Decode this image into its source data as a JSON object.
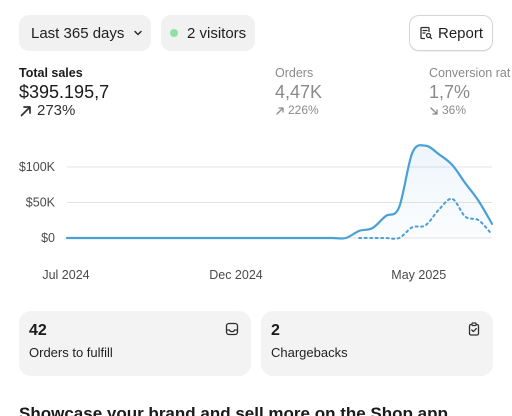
{
  "filters": {
    "date_range": "Last 365 days",
    "visitors": "2 visitors",
    "visitors_dot_color": "#8fdfa9"
  },
  "report_button": {
    "label": "Report",
    "icon": "report-icon"
  },
  "metrics": [
    {
      "label": "Total sales",
      "value": "$395.195,7",
      "change": "273%",
      "trend": "up",
      "emphasis": true
    },
    {
      "label": "Orders",
      "value": "4,47K",
      "change": "226%",
      "trend": "up",
      "emphasis": false
    },
    {
      "label": "Conversion rat",
      "value": "1,7%",
      "change": "36%",
      "trend": "down",
      "emphasis": false
    }
  ],
  "chart_data": {
    "type": "line",
    "y_tick_labels": [
      "$100K",
      "$50K",
      "$0"
    ],
    "y_ticks": [
      100000,
      50000,
      0
    ],
    "ylim": [
      0,
      100000
    ],
    "x_tick_labels": [
      "Jul 2024",
      "Dec 2024",
      "May 2025"
    ],
    "grid": true,
    "series": [
      {
        "style": "solid",
        "color": "#4a9fd6",
        "values": [
          0,
          0,
          0,
          0,
          0,
          0,
          0,
          0,
          0,
          0,
          0,
          0,
          0,
          0,
          0,
          0,
          0,
          0,
          0,
          0,
          0,
          0,
          10000,
          14000,
          31000,
          43000,
          120000,
          130000,
          118000,
          103000,
          77000,
          52000,
          20000
        ]
      },
      {
        "style": "dotted",
        "color": "#4a9fd6",
        "values": [
          null,
          null,
          null,
          null,
          null,
          null,
          null,
          null,
          null,
          null,
          null,
          null,
          null,
          null,
          null,
          null,
          null,
          null,
          null,
          null,
          null,
          null,
          0,
          0,
          0,
          0,
          15000,
          18000,
          40000,
          55000,
          30000,
          25000,
          5000
        ]
      }
    ]
  },
  "cards": [
    {
      "number": "42",
      "caption": "Orders to fulfill",
      "icon": "inbox-icon"
    },
    {
      "number": "2",
      "caption": "Chargebacks",
      "icon": "clipboard-icon"
    }
  ],
  "showcase_heading": "Showcase your brand and sell more on the Shop app"
}
